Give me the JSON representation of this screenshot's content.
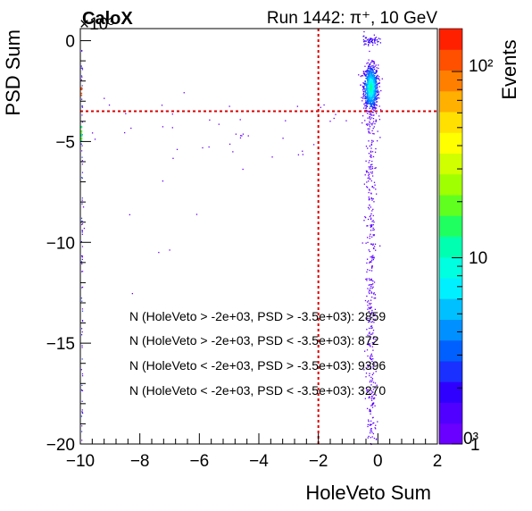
{
  "header": {
    "brand": "CaloX",
    "run_title": "Run 1442: π⁺, 10 GeV"
  },
  "chart_data": {
    "type": "heatmap",
    "xlabel": "HoleVeto Sum",
    "ylabel": "PSD Sum",
    "y_multiplier_label": "×10³",
    "xlim": [
      -10,
      2
    ],
    "ylim": [
      -20,
      0.6
    ],
    "x_ticks": [
      -10,
      -8,
      -6,
      -4,
      -2,
      0,
      2
    ],
    "x_tick_labels": [
      "−10",
      "−8",
      "−6",
      "−4",
      "−2",
      "0",
      "2"
    ],
    "y_ticks": [
      -20,
      -15,
      -10,
      -5,
      0
    ],
    "y_tick_labels": [
      "−20",
      "−15",
      "−10",
      "−5",
      "0"
    ],
    "colorbar": {
      "title": "Events",
      "scale": "log",
      "range": [
        1,
        170
      ],
      "tick_labels": [
        "1",
        "10",
        "10²"
      ],
      "bottom_extra_label": "0³",
      "palette": [
        "#6a00ff",
        "#5000ff",
        "#3000ff",
        "#1a30ff",
        "#0060ff",
        "#0090ff",
        "#00c0ff",
        "#00f0ff",
        "#00ffe0",
        "#00ffb0",
        "#20ff60",
        "#60ff20",
        "#a0ff00",
        "#d0ff00",
        "#ffff00",
        "#ffe000",
        "#ffb000",
        "#ff8000",
        "#ff5000",
        "#ff2000"
      ]
    },
    "cut_lines": {
      "holeveto_cut": -2,
      "psd_cut": -3.5,
      "color": "#dd0000"
    },
    "main_cluster": {
      "holeveto_center": -0.25,
      "psd_center": -2.3,
      "holeveto_width": 0.12,
      "psd_width": 0.55
    },
    "annotations": [
      "N (HoleVeto > -2e+03, PSD > -3.5e+03): 2859",
      "N (HoleVeto > -2e+03, PSD < -3.5e+03): 872",
      "N (HoleVeto < -2e+03, PSD > -3.5e+03): 9396",
      "N (HoleVeto < -2e+03, PSD < -3.5e+03): 3270"
    ],
    "counts": {
      "holeveto_above_psd_above": 2859,
      "holeveto_above_psd_below": 872,
      "holeveto_below_psd_above": 9396,
      "holeveto_below_psd_below": 3270
    }
  }
}
